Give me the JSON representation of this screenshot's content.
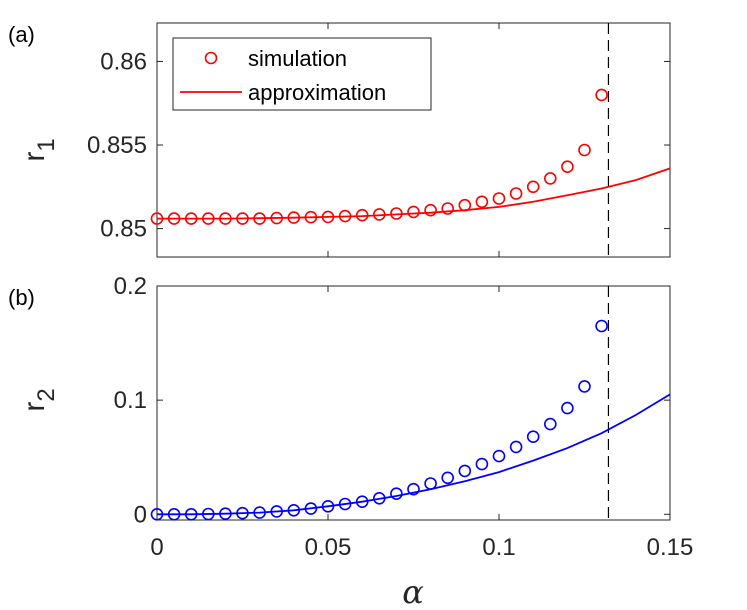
{
  "chart_data": [
    {
      "panel_label": "(a)",
      "type": "scatter+line",
      "ylabel": "r",
      "ylabel_sub": "1",
      "ylim": [
        0.8483,
        0.8623
      ],
      "yticks": [
        0.85,
        0.855,
        0.86
      ],
      "ytick_labels": [
        "0.85",
        "0.855",
        "0.86"
      ],
      "color": "#ff0000",
      "legend": {
        "position": "top-left",
        "entries": [
          "simulation",
          "approximation"
        ]
      },
      "series": [
        {
          "name": "simulation",
          "style": "circle-markers",
          "x": [
            0,
            0.005,
            0.01,
            0.015,
            0.02,
            0.025,
            0.03,
            0.035,
            0.04,
            0.045,
            0.05,
            0.055,
            0.06,
            0.065,
            0.07,
            0.075,
            0.08,
            0.085,
            0.09,
            0.095,
            0.1,
            0.105,
            0.11,
            0.115,
            0.12,
            0.125,
            0.13
          ],
          "y": [
            0.8506,
            0.8506,
            0.8506,
            0.8506,
            0.8506,
            0.8506,
            0.8506,
            0.85063,
            0.85066,
            0.85068,
            0.8507,
            0.85075,
            0.8508,
            0.85085,
            0.8509,
            0.851,
            0.8511,
            0.8512,
            0.8514,
            0.8516,
            0.8518,
            0.8521,
            0.8525,
            0.853,
            0.8537,
            0.8547,
            0.858
          ]
        },
        {
          "name": "approximation",
          "style": "solid-line",
          "x": [
            0,
            0.01,
            0.02,
            0.03,
            0.04,
            0.05,
            0.06,
            0.07,
            0.08,
            0.09,
            0.1,
            0.11,
            0.12,
            0.13,
            0.14,
            0.15
          ],
          "y": [
            0.8506,
            0.8506,
            0.8506,
            0.85062,
            0.85065,
            0.8507,
            0.85075,
            0.85085,
            0.85095,
            0.8511,
            0.8513,
            0.8516,
            0.852,
            0.8524,
            0.8529,
            0.8536
          ]
        }
      ]
    },
    {
      "panel_label": "(b)",
      "type": "scatter+line",
      "ylabel": "r",
      "ylabel_sub": "2",
      "ylim": [
        -0.005,
        0.2
      ],
      "yticks": [
        0,
        0.1,
        0.2
      ],
      "ytick_labels": [
        "0",
        "0.1",
        "0.2"
      ],
      "color": "#0000ff",
      "series": [
        {
          "name": "simulation",
          "style": "circle-markers",
          "x": [
            0,
            0.005,
            0.01,
            0.015,
            0.02,
            0.025,
            0.03,
            0.035,
            0.04,
            0.045,
            0.05,
            0.055,
            0.06,
            0.065,
            0.07,
            0.075,
            0.08,
            0.085,
            0.09,
            0.095,
            0.1,
            0.105,
            0.11,
            0.115,
            0.12,
            0.125,
            0.13
          ],
          "y": [
            0,
            0,
            0,
            0.0003,
            0.0005,
            0.001,
            0.0015,
            0.0025,
            0.0035,
            0.005,
            0.007,
            0.009,
            0.011,
            0.014,
            0.018,
            0.022,
            0.027,
            0.032,
            0.038,
            0.044,
            0.051,
            0.059,
            0.068,
            0.079,
            0.093,
            0.112,
            0.165
          ]
        },
        {
          "name": "approximation",
          "style": "solid-line",
          "x": [
            0,
            0.01,
            0.02,
            0.03,
            0.04,
            0.05,
            0.06,
            0.07,
            0.08,
            0.09,
            0.1,
            0.11,
            0.12,
            0.13,
            0.14,
            0.15
          ],
          "y": [
            0,
            0,
            0.0005,
            0.0015,
            0.0035,
            0.007,
            0.011,
            0.016,
            0.022,
            0.029,
            0.037,
            0.047,
            0.058,
            0.071,
            0.087,
            0.105
          ]
        }
      ]
    }
  ],
  "shared_x": {
    "xlim": [
      0,
      0.15
    ],
    "xticks": [
      0,
      0.05,
      0.1,
      0.15
    ],
    "xtick_labels": [
      "0",
      "0.05",
      "0.1",
      "0.15"
    ],
    "xlabel": "α"
  },
  "threshold_alpha": 0.132,
  "axis_color": "#262626",
  "threshold_color": "#000000"
}
